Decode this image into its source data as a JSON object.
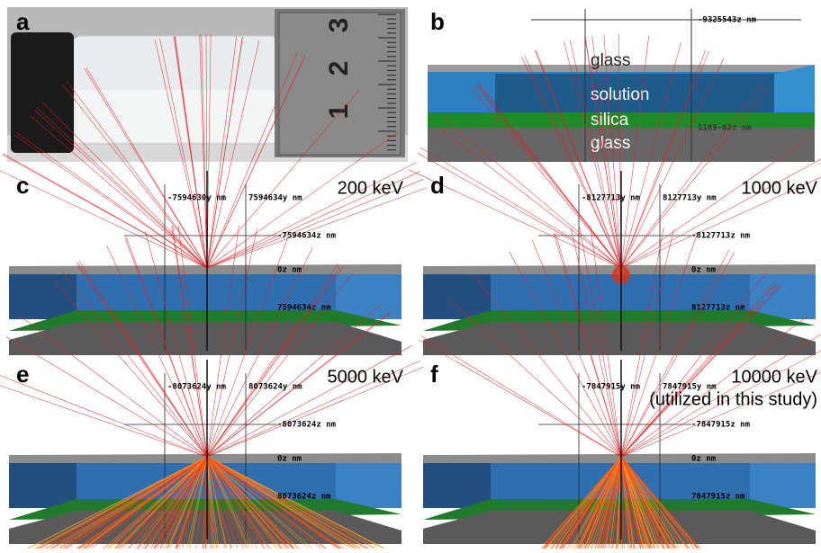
{
  "panels": [
    {
      "label": "a",
      "ruler_digits": [
        "3",
        "2",
        "1"
      ]
    },
    {
      "label": "b",
      "annotations": [
        "-9325543z nm",
        "1189-62z nm"
      ],
      "layers": [
        "glass",
        "solution",
        "silica",
        "glass"
      ]
    },
    {
      "label": "c",
      "energy": "200 keV",
      "annotations": [
        "-7594630y nm",
        "7594634y nm",
        "-7594634z nm",
        "0z nm",
        "7594634z nm"
      ]
    },
    {
      "label": "d",
      "energy": "1000 keV",
      "annotations": [
        "-8127713y nm",
        "8127713y nm",
        "-8127713z nm",
        "0z nm",
        "8127713z nm"
      ]
    },
    {
      "label": "e",
      "energy": "5000 keV",
      "annotations": [
        "-8073624y nm",
        "8073624y nm",
        "-8073624z nm",
        "0z nm",
        "8073624z nm"
      ]
    },
    {
      "label": "f",
      "energy": "10000 keV",
      "note": "(utilized in this study)",
      "annotations": [
        "-7847915y nm",
        "7847915y nm",
        "-7847915z nm",
        "0z nm",
        "7847915z nm"
      ]
    }
  ]
}
